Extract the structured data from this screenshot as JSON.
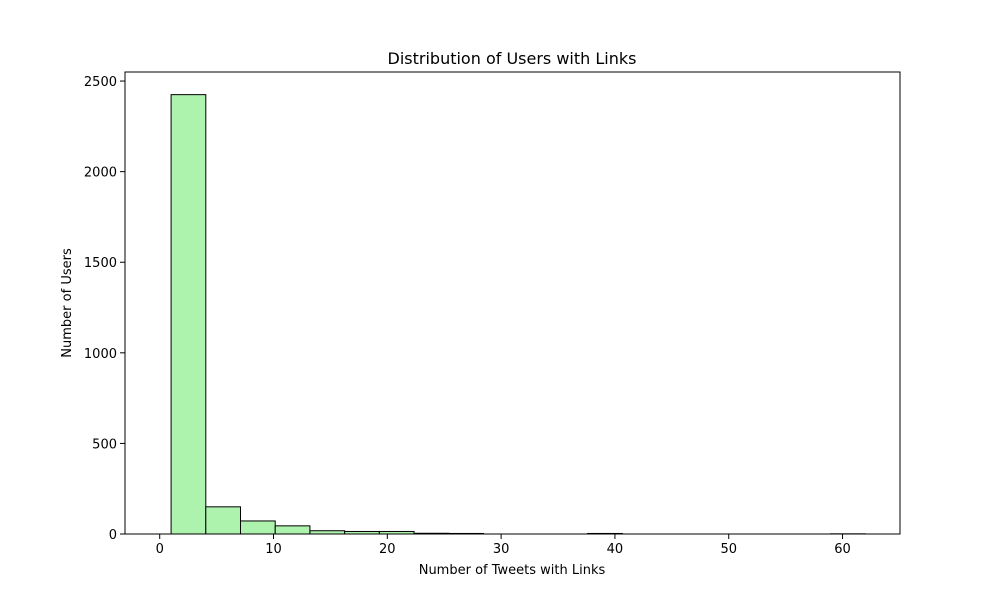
{
  "chart_data": {
    "type": "histogram",
    "title": "Distribution of Users with Links",
    "xlabel": "Number of Tweets with Links",
    "ylabel": "Number of Users",
    "xlim": [
      -3.05,
      65.05
    ],
    "ylim": [
      0,
      2550
    ],
    "x_ticks": [
      0,
      10,
      20,
      30,
      40,
      50,
      60
    ],
    "y_ticks": [
      0,
      500,
      1000,
      1500,
      2000,
      2500
    ],
    "bin_start": 1,
    "bin_width": 3.05,
    "values": [
      2425,
      150,
      72,
      45,
      18,
      14,
      14,
      4,
      3,
      0,
      0,
      0,
      3,
      0,
      0,
      0,
      0,
      0,
      0,
      1
    ],
    "bar_color": "#adf2ad",
    "edge_color": "#000000",
    "grid": false,
    "legend": "none"
  }
}
